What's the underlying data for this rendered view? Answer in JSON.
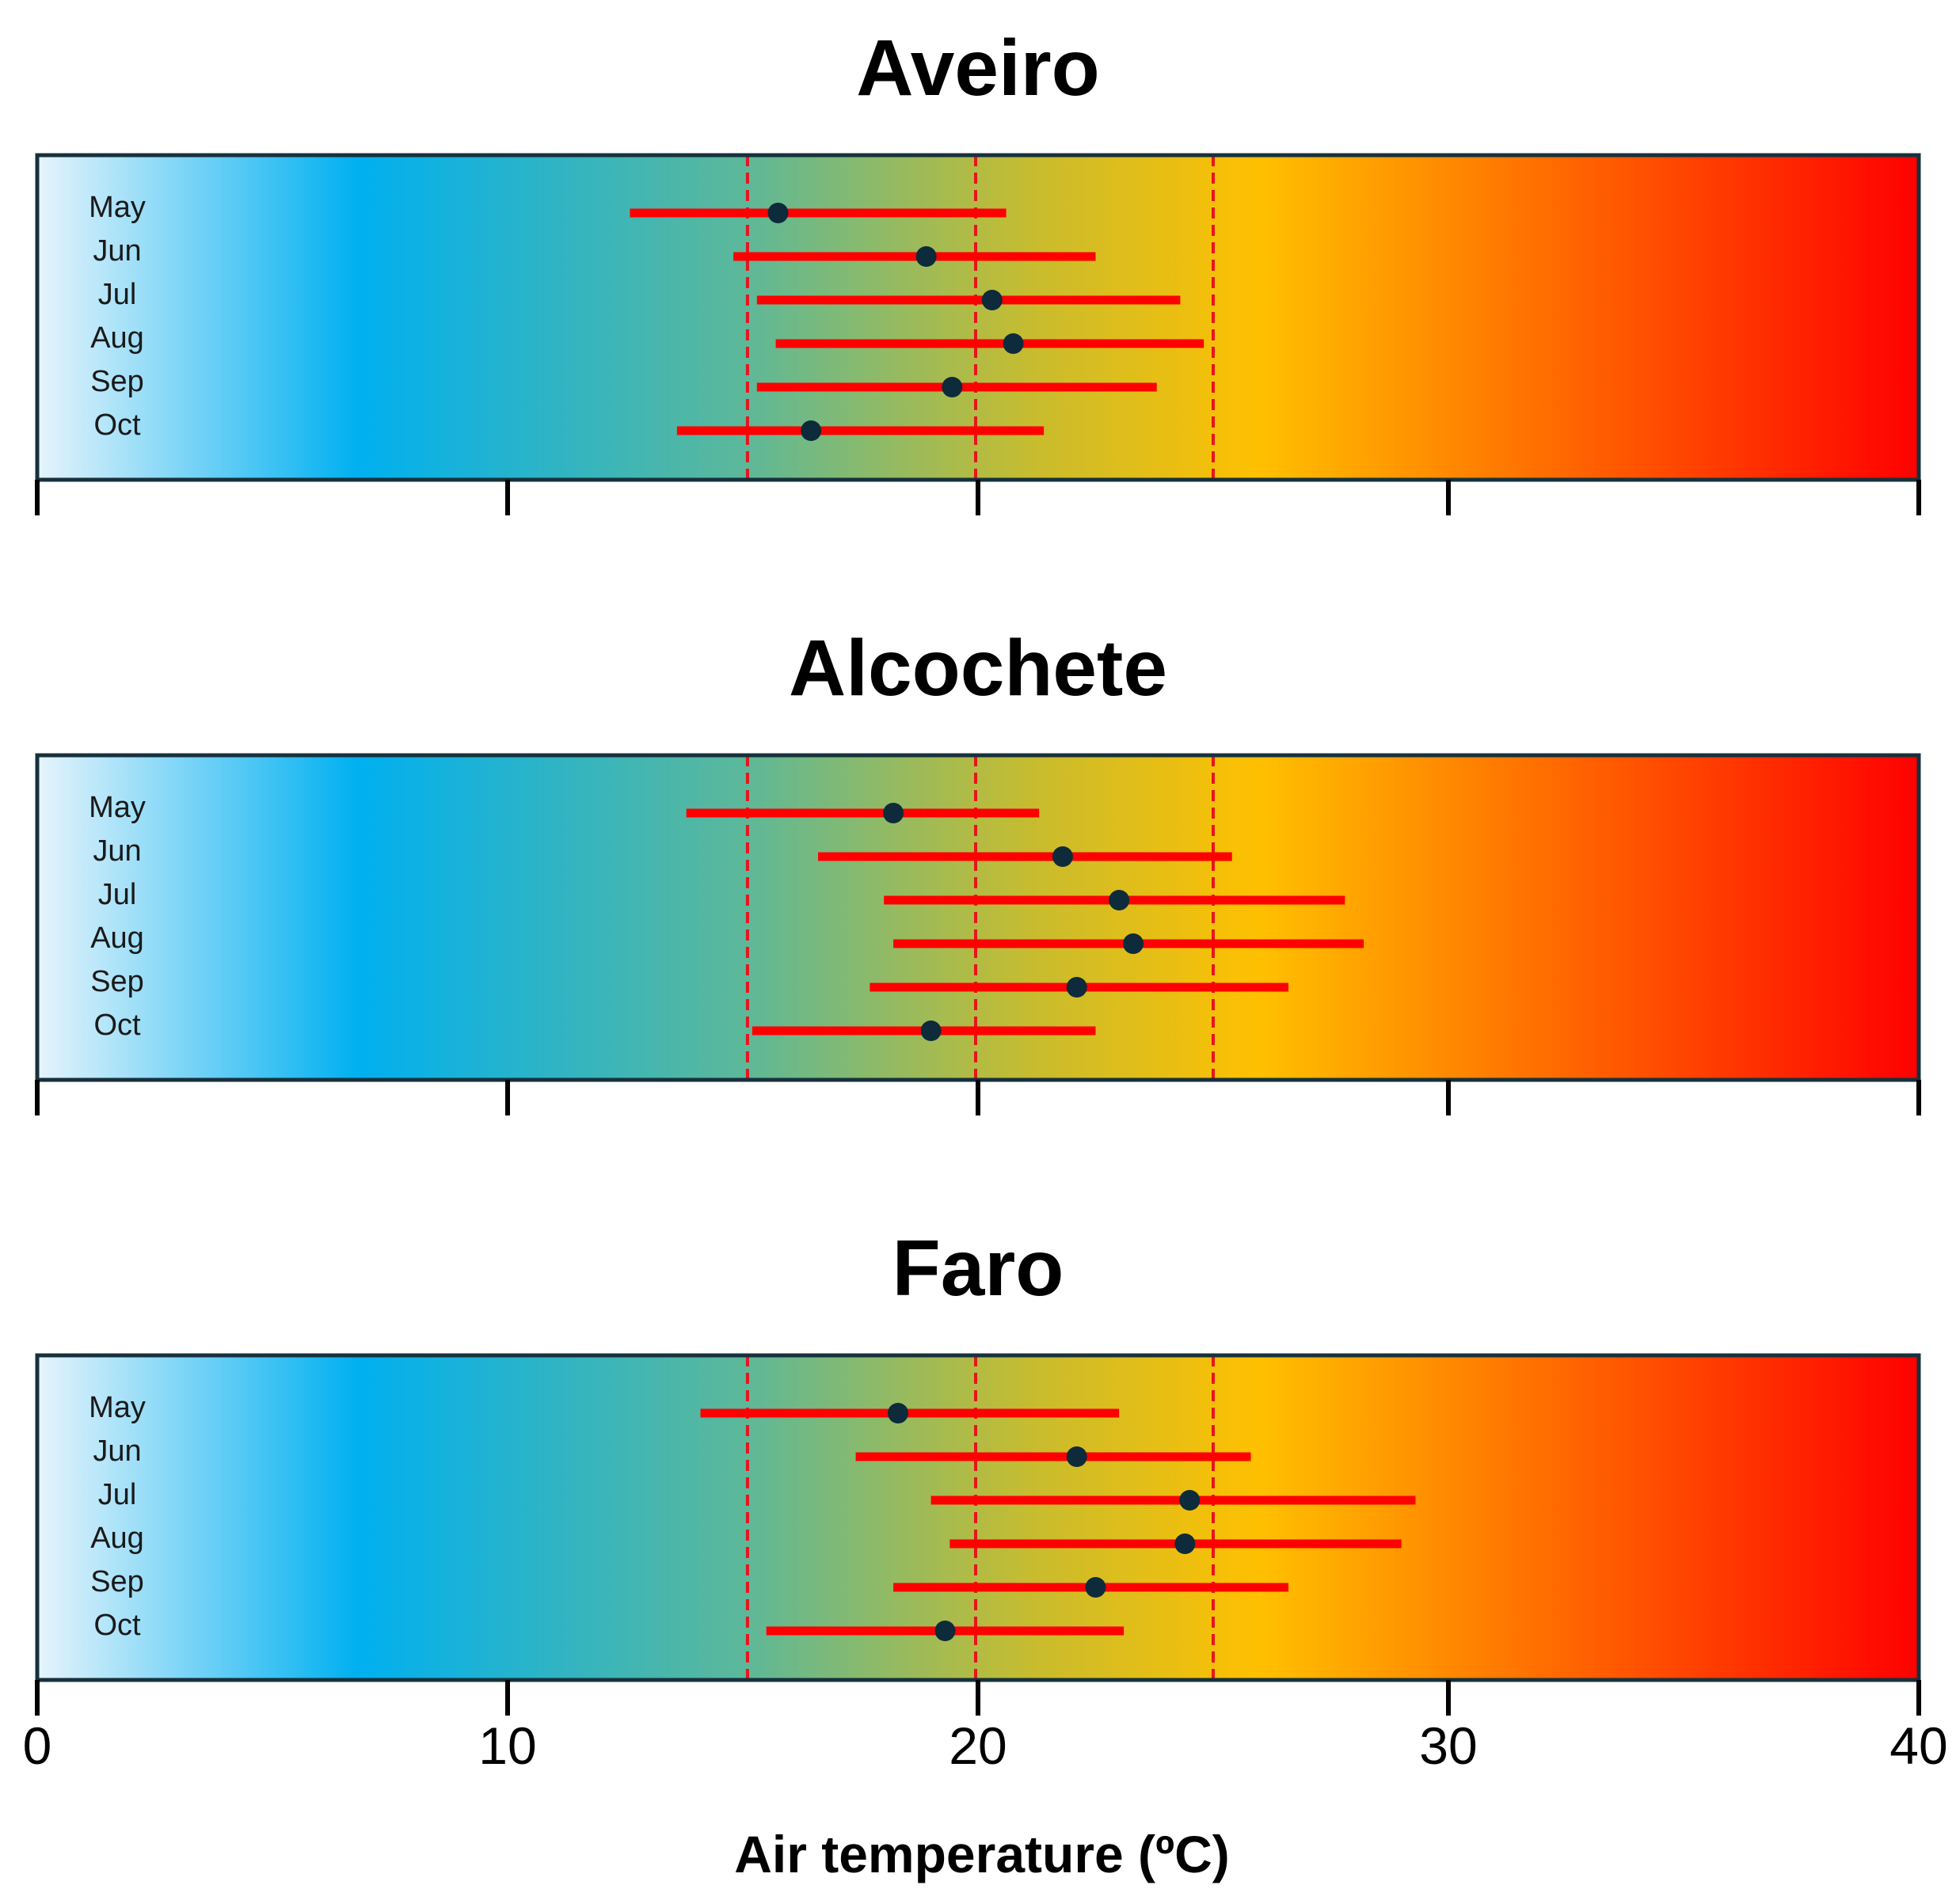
{
  "chart_data": {
    "type": "scatter",
    "xlabel": "Air temperature (ºC)",
    "xlim": [
      0,
      40
    ],
    "xticks": [
      0,
      10,
      20,
      30,
      40
    ],
    "reference_lines": [
      15.1,
      19.95,
      25
    ],
    "color_scale": [
      "#e6f4fc",
      "#00b0f0",
      "#5cb89a",
      "#c8bc2e",
      "#ffc000",
      "#ff0000"
    ],
    "error_bar_color": "#ff0000",
    "point_color": "#0d2b3a",
    "panels": [
      {
        "title": "Aveiro",
        "series": [
          {
            "month": "May",
            "mean": 15.75,
            "min": 12.6,
            "max": 20.6
          },
          {
            "month": "Jun",
            "mean": 18.9,
            "min": 14.8,
            "max": 22.5
          },
          {
            "month": "Jul",
            "mean": 20.3,
            "min": 15.3,
            "max": 24.3
          },
          {
            "month": "Aug",
            "mean": 20.75,
            "min": 15.7,
            "max": 24.8
          },
          {
            "month": "Sep",
            "mean": 19.45,
            "min": 15.3,
            "max": 23.8
          },
          {
            "month": "Oct",
            "mean": 16.45,
            "min": 13.6,
            "max": 21.4
          }
        ]
      },
      {
        "title": "Alcochete",
        "series": [
          {
            "month": "May",
            "mean": 18.2,
            "min": 13.8,
            "max": 21.3
          },
          {
            "month": "Jun",
            "mean": 21.8,
            "min": 16.6,
            "max": 25.4
          },
          {
            "month": "Jul",
            "mean": 23.0,
            "min": 18.0,
            "max": 27.8
          },
          {
            "month": "Aug",
            "mean": 23.3,
            "min": 18.2,
            "max": 28.2
          },
          {
            "month": "Sep",
            "mean": 22.1,
            "min": 17.7,
            "max": 26.6
          },
          {
            "month": "Oct",
            "mean": 19.0,
            "min": 15.2,
            "max": 22.5
          }
        ]
      },
      {
        "title": "Faro",
        "series": [
          {
            "month": "May",
            "mean": 18.3,
            "min": 14.1,
            "max": 23.0
          },
          {
            "month": "Jun",
            "mean": 22.1,
            "min": 17.4,
            "max": 25.8
          },
          {
            "month": "Jul",
            "mean": 24.5,
            "min": 19.0,
            "max": 29.3
          },
          {
            "month": "Aug",
            "mean": 24.4,
            "min": 19.4,
            "max": 29.0
          },
          {
            "month": "Sep",
            "mean": 22.5,
            "min": 18.2,
            "max": 26.6
          },
          {
            "month": "Oct",
            "mean": 19.3,
            "min": 15.5,
            "max": 23.1
          }
        ]
      }
    ]
  }
}
